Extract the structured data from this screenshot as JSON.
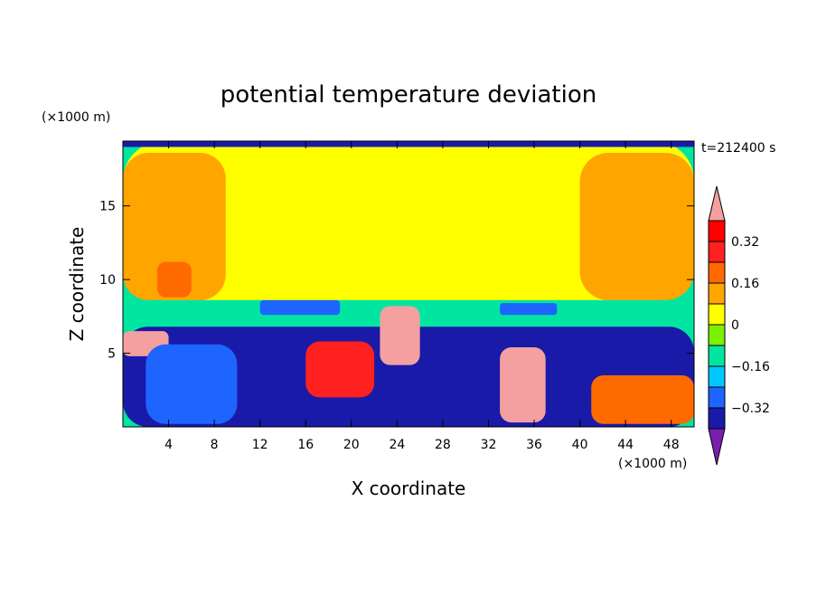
{
  "chart_data": {
    "type": "heatmap",
    "title": "potential temperature deviation",
    "xlabel": "X coordinate",
    "ylabel": "Z coordinate",
    "x_unit": "(×1000 m)",
    "y_unit": "(×1000 m)",
    "time_label": "t=212400 s",
    "xlim": [
      0,
      50
    ],
    "ylim": [
      0,
      19.4
    ],
    "x_ticks": [
      4,
      8,
      12,
      16,
      20,
      24,
      28,
      32,
      36,
      40,
      44,
      48
    ],
    "y_ticks": [
      5,
      10,
      15
    ],
    "colorbar": {
      "levels": [
        -0.4,
        -0.32,
        -0.24,
        -0.16,
        -0.08,
        0,
        0.08,
        0.16,
        0.24,
        0.32,
        0.4
      ],
      "labeled_ticks": [
        "0.32",
        "0.16",
        "0",
        "−0.16",
        "−0.32"
      ],
      "labeled_values": [
        0.32,
        0.16,
        0,
        -0.16,
        -0.32
      ],
      "colors": [
        "#7a1fb0",
        "#1a1aa8",
        "#1e64ff",
        "#00c8ff",
        "#00e6a0",
        "#7cf000",
        "#ffff00",
        "#ffa500",
        "#ff6a00",
        "#ff2020",
        "#ff0000",
        "#f4a0a0"
      ],
      "extend": "both"
    },
    "regions": [
      {
        "x": [
          0,
          50
        ],
        "z": [
          8.6,
          19.4
        ],
        "value": 0.04
      },
      {
        "x": [
          0,
          9
        ],
        "z": [
          8.6,
          18.6
        ],
        "value": 0.1
      },
      {
        "x": [
          40,
          50
        ],
        "z": [
          8.6,
          18.6
        ],
        "value": 0.1
      },
      {
        "x": [
          3,
          6
        ],
        "z": [
          8.8,
          11.2
        ],
        "value": 0.18
      },
      {
        "x": [
          0,
          50
        ],
        "z": [
          6.8,
          8.6
        ],
        "value": -0.12
      },
      {
        "x": [
          12,
          19
        ],
        "z": [
          7.6,
          8.6
        ],
        "value": -0.28
      },
      {
        "x": [
          33,
          38
        ],
        "z": [
          7.6,
          8.4
        ],
        "value": -0.28
      },
      {
        "x": [
          0,
          50
        ],
        "z": [
          0,
          6.8
        ],
        "value": -0.36
      },
      {
        "x": [
          0,
          50
        ],
        "z": [
          19,
          19.4
        ],
        "value": -0.36
      },
      {
        "x": [
          0,
          4
        ],
        "z": [
          4.8,
          6.5
        ],
        "value": 0.45
      },
      {
        "x": [
          22.5,
          26
        ],
        "z": [
          4.2,
          8.2
        ],
        "value": 0.45
      },
      {
        "x": [
          33,
          37
        ],
        "z": [
          0.3,
          5.4
        ],
        "value": 0.45
      },
      {
        "x": [
          16,
          22
        ],
        "z": [
          2,
          5.8
        ],
        "value": 0.28
      },
      {
        "x": [
          41,
          50
        ],
        "z": [
          0.2,
          3.5
        ],
        "value": 0.2
      },
      {
        "x": [
          2,
          10
        ],
        "z": [
          0.2,
          5.6
        ],
        "value": -0.3
      }
    ]
  }
}
